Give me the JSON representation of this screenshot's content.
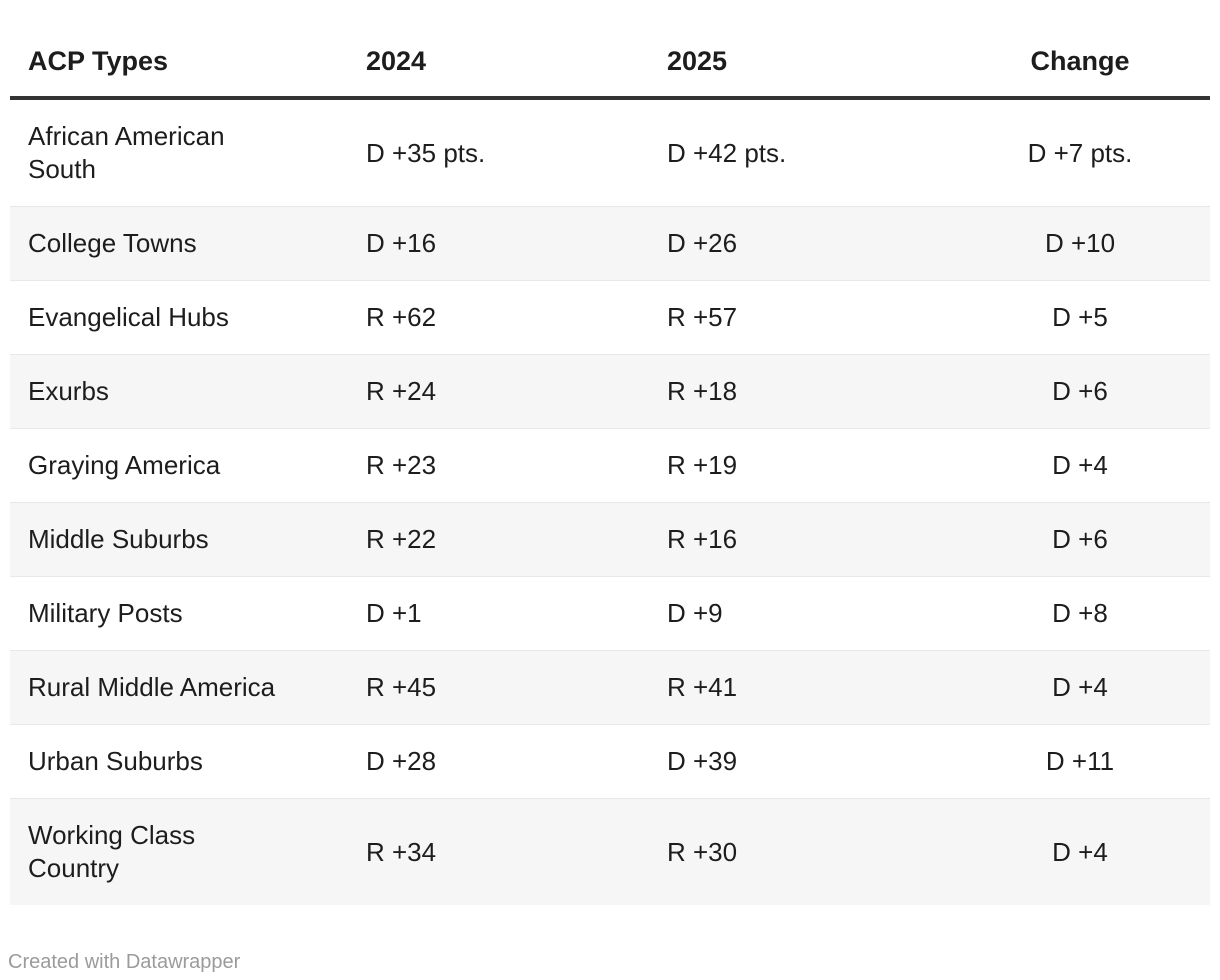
{
  "table": {
    "columns": [
      "ACP Types",
      "2024",
      "2025",
      "Change"
    ],
    "rows": [
      {
        "type": "African American\nSouth",
        "y2024": "D +35 pts.",
        "y2025": "D +42 pts.",
        "change": "D +7 pts."
      },
      {
        "type": "College Towns",
        "y2024": "D +16",
        "y2025": "D +26",
        "change": "D +10"
      },
      {
        "type": "Evangelical Hubs",
        "y2024": "R +62",
        "y2025": "R +57",
        "change": "D +5"
      },
      {
        "type": "Exurbs",
        "y2024": "R +24",
        "y2025": "R +18",
        "change": "D +6"
      },
      {
        "type": "Graying America",
        "y2024": "R +23",
        "y2025": "R +19",
        "change": "D +4"
      },
      {
        "type": "Middle Suburbs",
        "y2024": "R +22",
        "y2025": "R +16",
        "change": "D +6"
      },
      {
        "type": "Military Posts",
        "y2024": "D +1",
        "y2025": "D +9",
        "change": "D +8"
      },
      {
        "type": "Rural Middle America",
        "y2024": "R +45",
        "y2025": "R +41",
        "change": "D +4"
      },
      {
        "type": "Urban Suburbs",
        "y2024": "D +28",
        "y2025": "D +39",
        "change": "D +11"
      },
      {
        "type": "Working Class\nCountry",
        "y2024": "R +34",
        "y2025": "R +30",
        "change": "D +4"
      }
    ]
  },
  "footer": {
    "credit": "Created with Datawrapper"
  },
  "colors": {
    "text": "#1d1d1d",
    "header_rule": "#333333",
    "row_stripe": "#f6f6f6",
    "row_divider": "#e8e8e8",
    "credit_text": "#9b9b9b"
  },
  "chart_data": {
    "type": "table",
    "title": "",
    "columns": [
      "ACP Types",
      "2024",
      "2025",
      "Change"
    ],
    "rows": [
      [
        "African American South",
        "D +35 pts.",
        "D +42 pts.",
        "D +7 pts."
      ],
      [
        "College Towns",
        "D +16",
        "D +26",
        "D +10"
      ],
      [
        "Evangelical Hubs",
        "R +62",
        "R +57",
        "D +5"
      ],
      [
        "Exurbs",
        "R +24",
        "R +18",
        "D +6"
      ],
      [
        "Graying America",
        "R +23",
        "R +19",
        "D +4"
      ],
      [
        "Middle Suburbs",
        "R +22",
        "R +16",
        "D +6"
      ],
      [
        "Military Posts",
        "D +1",
        "D +9",
        "D +8"
      ],
      [
        "Rural Middle America",
        "R +45",
        "R +41",
        "D +4"
      ],
      [
        "Urban Suburbs",
        "D +28",
        "D +39",
        "D +11"
      ],
      [
        "Working Class Country",
        "R +34",
        "R +30",
        "D +4"
      ]
    ],
    "layout_hints": {
      "striped_rows": "even",
      "change_column_align": "center",
      "value_columns_align": "left"
    }
  }
}
